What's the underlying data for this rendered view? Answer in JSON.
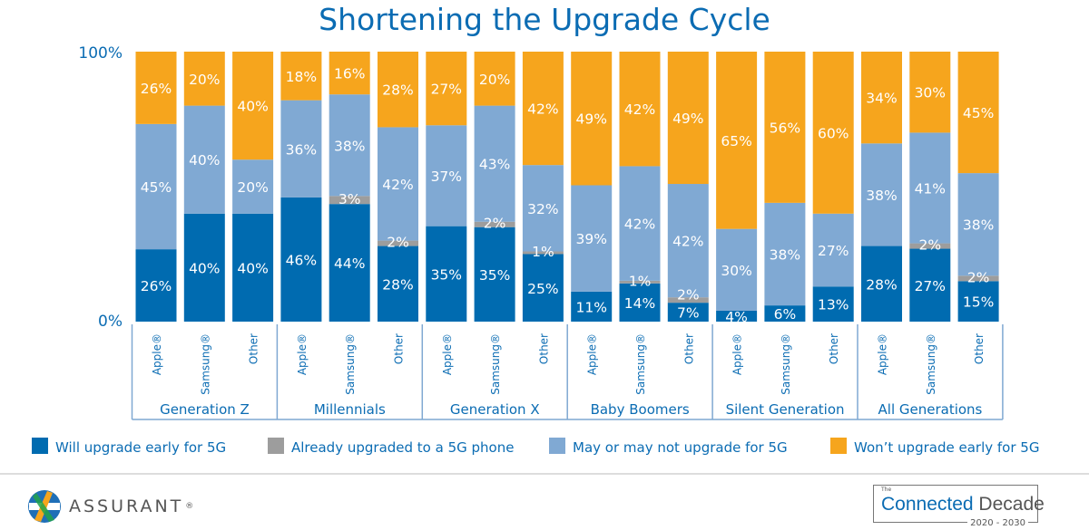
{
  "chart_data": {
    "type": "bar",
    "stacked": true,
    "title": "Shortening the Upgrade Cycle",
    "ylim": [
      0,
      100
    ],
    "yticks": [
      "0%",
      "100%"
    ],
    "groups": [
      "Generation Z",
      "Millennials",
      "Generation X",
      "Baby Boomers",
      "Silent Generation",
      "All Generations"
    ],
    "categories": [
      "Apple®",
      "Samsung®",
      "Other"
    ],
    "legend_position": "bottom",
    "series": [
      {
        "name": "Will upgrade early for 5G",
        "color": "#006bb0",
        "values": [
          [
            26,
            40,
            40
          ],
          [
            46,
            44,
            28
          ],
          [
            35,
            35,
            25
          ],
          [
            11,
            14,
            7
          ],
          [
            4,
            6,
            13
          ],
          [
            28,
            27,
            15
          ]
        ]
      },
      {
        "name": "Already upgraded to a 5G phone",
        "color": "#9d9d9d",
        "values": [
          [
            0,
            0,
            0
          ],
          [
            0,
            3,
            2
          ],
          [
            0,
            2,
            1
          ],
          [
            0,
            1,
            2
          ],
          [
            0,
            0,
            0
          ],
          [
            0,
            2,
            2
          ]
        ]
      },
      {
        "name": "May or may not upgrade for 5G",
        "color": "#80a9d3",
        "values": [
          [
            45,
            40,
            20
          ],
          [
            36,
            38,
            42
          ],
          [
            37,
            43,
            32
          ],
          [
            39,
            42,
            42
          ],
          [
            30,
            38,
            27
          ],
          [
            38,
            41,
            38
          ]
        ]
      },
      {
        "name": "Won’t upgrade early for 5G",
        "color": "#f6a51d",
        "values": [
          [
            26,
            20,
            40
          ],
          [
            18,
            16,
            28
          ],
          [
            27,
            20,
            42
          ],
          [
            49,
            42,
            49
          ],
          [
            65,
            56,
            60
          ],
          [
            34,
            30,
            45
          ]
        ]
      }
    ]
  },
  "footer": {
    "logo": "ASSURANT",
    "badge_small": "The",
    "badge_a": "Connected",
    "badge_b": "Decade",
    "badge_years": "2020 - 2030"
  }
}
